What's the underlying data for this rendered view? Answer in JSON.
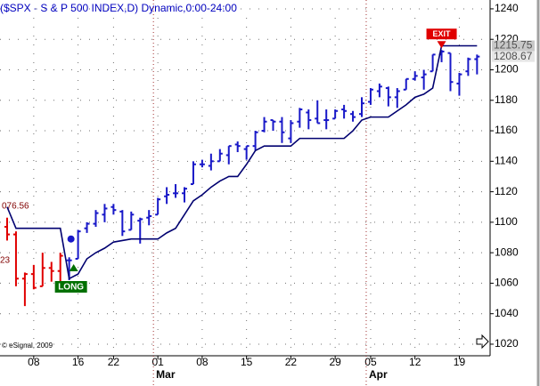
{
  "chart_data": {
    "type": "ohlc",
    "title": "($SPX - S & P 500 INDEX,D) Dynamic,0:00-24:00",
    "copyright": "© eSignal, 2009",
    "categories": [
      null,
      null,
      null,
      "08",
      null,
      null,
      null,
      null,
      "16",
      null,
      null,
      null,
      "22",
      null,
      null,
      null,
      null,
      "01",
      null,
      null,
      null,
      null,
      "08",
      null,
      null,
      null,
      null,
      "15",
      null,
      null,
      null,
      null,
      "22",
      null,
      null,
      null,
      null,
      "29",
      null,
      null,
      null,
      "05",
      null,
      null,
      null,
      null,
      "12",
      null,
      null,
      null,
      null,
      "19",
      null,
      null
    ],
    "months": [
      null,
      null,
      null,
      null,
      null,
      null,
      null,
      null,
      null,
      null,
      null,
      null,
      null,
      null,
      null,
      null,
      null,
      "Mar",
      null,
      null,
      null,
      null,
      null,
      null,
      null,
      null,
      null,
      null,
      null,
      null,
      null,
      null,
      null,
      null,
      null,
      null,
      null,
      null,
      null,
      null,
      null,
      "Apr",
      null,
      null,
      null,
      null,
      null,
      null,
      null,
      null,
      null,
      null,
      null,
      null
    ],
    "open": [
      1097,
      1092,
      1063,
      1066,
      1058,
      1070,
      1068,
      1075,
      1076,
      1096,
      1099,
      1105,
      1110,
      1107,
      1095,
      1101,
      1103,
      1105,
      1117,
      1119,
      1119,
      1125,
      1138,
      1137,
      1140,
      1144,
      1151,
      1148,
      1150,
      1160,
      1167,
      1166,
      1155,
      1166,
      1172,
      1168,
      1167,
      1168,
      1174,
      1171,
      1171,
      1179,
      1186,
      1188,
      1182,
      1187,
      1194,
      1195,
      1199,
      1210,
      1211,
      1191,
      1199,
      1207
    ],
    "high": [
      1103,
      1094,
      1067,
      1072,
      1080,
      1074,
      1080,
      1077,
      1095,
      1100,
      1108,
      1112,
      1112,
      1108,
      1107,
      1103,
      1108,
      1116,
      1123,
      1125,
      1123,
      1140,
      1141,
      1145,
      1148,
      1150,
      1153,
      1150,
      1160,
      1169,
      1167,
      1169,
      1167,
      1175,
      1174,
      1180,
      1174,
      1174,
      1177,
      1173,
      1182,
      1188,
      1191,
      1189,
      1188,
      1194,
      1199,
      1200,
      1210,
      1213,
      1211,
      1198,
      1208,
      1210
    ],
    "low": [
      1088,
      1058,
      1045,
      1056,
      1058,
      1061,
      1061,
      1062,
      1076,
      1093,
      1097,
      1100,
      1105,
      1091,
      1095,
      1086,
      1098,
      1105,
      1112,
      1116,
      1113,
      1125,
      1136,
      1134,
      1140,
      1138,
      1146,
      1141,
      1147,
      1159,
      1160,
      1152,
      1152,
      1162,
      1161,
      1165,
      1161,
      1168,
      1168,
      1166,
      1169,
      1177,
      1182,
      1176,
      1175,
      1187,
      1193,
      1187,
      1199,
      1205,
      1186,
      1183,
      1196,
      1197
    ],
    "close": [
      1092,
      1063,
      1066,
      1057,
      1070,
      1068,
      1078,
      1075,
      1094,
      1099,
      1106,
      1109,
      1108,
      1094,
      1105,
      1102,
      1104,
      1115,
      1118,
      1119,
      1122,
      1138,
      1138,
      1140,
      1145,
      1150,
      1150,
      1150,
      1159,
      1166,
      1166,
      1159,
      1165,
      1174,
      1167,
      1165,
      1167,
      1173,
      1173,
      1169,
      1178,
      1187,
      1189,
      1182,
      1186,
      1194,
      1196,
      1197,
      1210,
      1212,
      1192,
      1197,
      1207,
      1208.67
    ],
    "colors": [
      "#e00000",
      "#e00000",
      "#e00000",
      "#e00000",
      "#e00000",
      "#e00000",
      "#e00000",
      "#1818c8",
      "#1818c8",
      "#1818c8",
      "#1818c8",
      "#1818c8",
      "#1818c8",
      "#1818c8",
      "#1818c8",
      "#1818c8",
      "#1818c8",
      "#1818c8",
      "#1818c8",
      "#1818c8",
      "#1818c8",
      "#1818c8",
      "#1818c8",
      "#1818c8",
      "#1818c8",
      "#1818c8",
      "#1818c8",
      "#1818c8",
      "#1818c8",
      "#1818c8",
      "#1818c8",
      "#1818c8",
      "#1818c8",
      "#1818c8",
      "#1818c8",
      "#1818c8",
      "#1818c8",
      "#1818c8",
      "#1818c8",
      "#1818c8",
      "#1818c8",
      "#1818c8",
      "#1818c8",
      "#1818c8",
      "#1818c8",
      "#1818c8",
      "#1818c8",
      "#1818c8",
      "#1818c8",
      "#1818c8",
      "#1818c8",
      "#1818c8",
      "#1818c8",
      "#1818c8"
    ],
    "stop": {
      "color": "#000070",
      "values": [
        1110,
        1096,
        1096,
        1096,
        1096,
        1096,
        1096,
        1063,
        1066,
        1076,
        1080,
        1083,
        1087,
        1088,
        1089,
        1089,
        1089,
        1089,
        1093,
        1096,
        1105,
        1114,
        1118,
        1123,
        1127,
        1130,
        1130,
        1138,
        1147,
        1150,
        1150,
        1150,
        1150,
        1155,
        1155,
        1155,
        1155,
        1155,
        1155,
        1160,
        1167,
        1169,
        1169,
        1169,
        1173,
        1177,
        1182,
        1184,
        1188,
        1215.75,
        1215.75,
        1215.75,
        1215.75,
        1215.75
      ]
    },
    "signals": [
      {
        "label": "LONG",
        "category": 7,
        "price": 1089,
        "color": "#007000"
      },
      {
        "label": "EXIT",
        "category": 49,
        "color": "#e00000"
      }
    ],
    "price_labels": [
      1215.75,
      1208.67
    ],
    "annotations": [
      "076.56",
      "23"
    ],
    "ylim": [
      1012.4,
      1245.8
    ],
    "yticks": [
      1020,
      1040,
      1060,
      1080,
      1100,
      1120,
      1140,
      1160,
      1180,
      1200,
      1220,
      1240
    ],
    "grid": true
  }
}
